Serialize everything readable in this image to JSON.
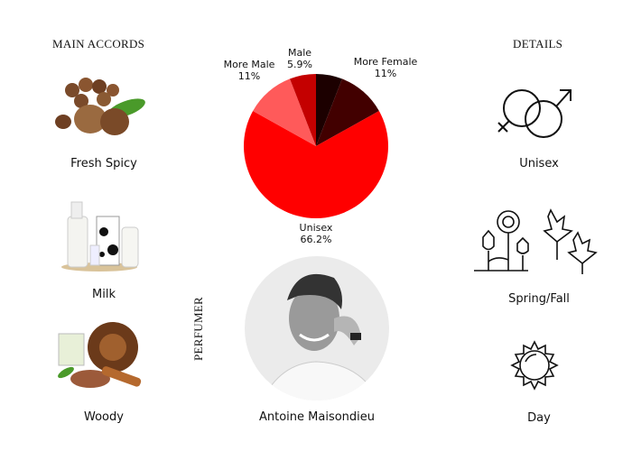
{
  "headings": {
    "main_accords": "MAIN ACCORDS",
    "details": "DETAILS",
    "perfumer": "PERFUMER"
  },
  "accords": [
    {
      "label": "Fresh Spicy",
      "icon": "nutmeg-image"
    },
    {
      "label": "Milk",
      "icon": "milk-bottles-image"
    },
    {
      "label": "Woody",
      "icon": "wood-cinnamon-image"
    }
  ],
  "details": [
    {
      "label": "Unisex",
      "icon": "gender-symbols-icon"
    },
    {
      "label": "Spring/Fall",
      "icon": "flowers-leaves-icon"
    },
    {
      "label": "Day",
      "icon": "sun-icon"
    }
  ],
  "perfumer": {
    "name": "Antoine Maisondieu"
  },
  "chart_data": {
    "type": "pie",
    "start": "top",
    "direction": "clockwise",
    "slices": [
      {
        "label": "",
        "value": 5.9,
        "value_label": "",
        "color": "#1c0000"
      },
      {
        "label": "More Female",
        "value": 11,
        "value_label": "11%",
        "color": "#420000"
      },
      {
        "label": "Unisex",
        "value": 66.2,
        "value_label": "66.2%",
        "color": "#ff0000"
      },
      {
        "label": "More Male",
        "value": 11,
        "value_label": "11%",
        "color": "#ff5a5a"
      },
      {
        "label": "Male",
        "value": 5.9,
        "value_label": "5.9%",
        "color": "#c40000"
      }
    ]
  }
}
